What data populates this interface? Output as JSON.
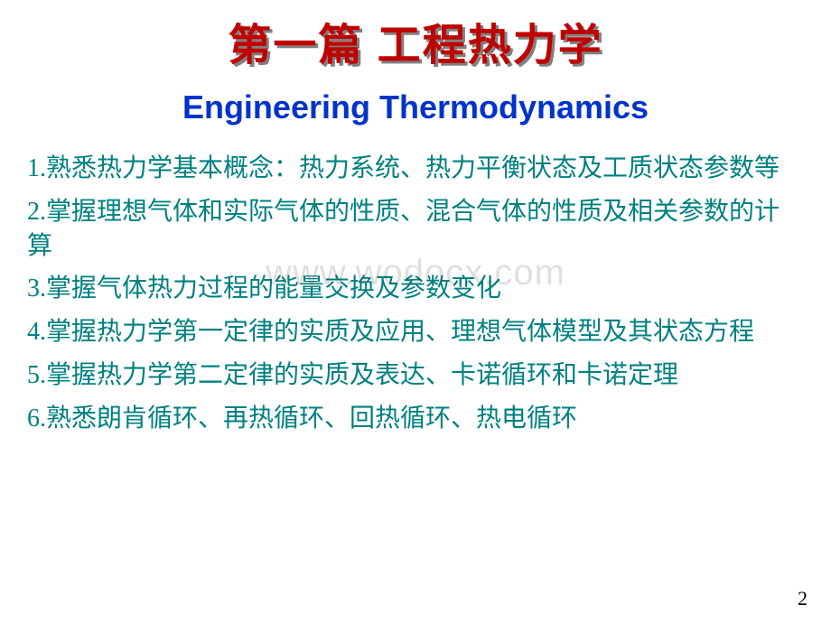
{
  "title": {
    "cn": "第一篇  工程热力学",
    "en": "Engineering Thermodynamics",
    "cn_color": "#c00000",
    "cn_shadow": "#808080",
    "cn_fontsize": 48,
    "en_color": "#0033cc",
    "en_fontsize": 36
  },
  "items": [
    "1.熟悉热力学基本概念：热力系统、热力平衡状态及工质状态参数等",
    "2.掌握理想气体和实际气体的性质、混合气体的性质及相关参数的计算",
    "3.掌握气体热力过程的能量交换及参数变化",
    "4.掌握热力学第一定律的实质及应用、理想气体模型及其状态方程",
    "5.掌握热力学第二定律的实质及表达、卡诺循环和卡诺定理",
    "6.熟悉朗肯循环、再热循环、回热循环、热电循环"
  ],
  "item_style": {
    "color": "#008080",
    "fontsize": 28
  },
  "watermark": {
    "text": "www.wodocx.com",
    "color_opacity": 0.12,
    "fontsize": 40
  },
  "page_number": "2",
  "background_color": "#ffffff"
}
